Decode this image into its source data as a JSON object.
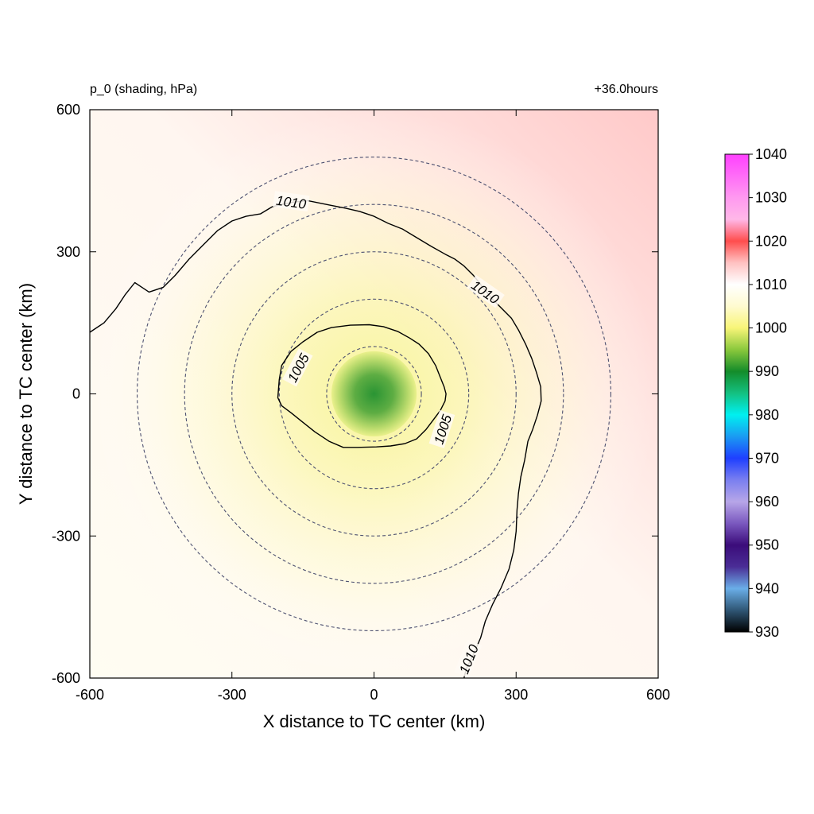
{
  "chart_data": {
    "type": "heatmap",
    "variable_label": "p_0 (shading, hPa)",
    "time_label": "+36.0hours",
    "xlabel": "X distance to TC center (km)",
    "ylabel": "Y distance to TC center (km)",
    "xlim": [
      -600,
      600
    ],
    "ylim": [
      -600,
      600
    ],
    "x_ticks": [
      -600,
      -300,
      0,
      300,
      600
    ],
    "y_ticks": [
      -600,
      -300,
      0,
      300,
      600
    ],
    "range_rings_km": [
      100,
      200,
      300,
      400,
      500
    ],
    "field": {
      "center": [
        0,
        0
      ],
      "center_value": 987,
      "background_gradient": {
        "southwest": 1008,
        "northeast": 1018
      }
    },
    "contours": [
      {
        "level": 1005,
        "labels": [
          {
            "text": "1005",
            "x": -160,
            "y": 55
          },
          {
            "text": "1005",
            "x": 145,
            "y": -75
          }
        ],
        "points": [
          [
            -195,
            60
          ],
          [
            -175,
            90
          ],
          [
            -150,
            110
          ],
          [
            -120,
            130
          ],
          [
            -90,
            140
          ],
          [
            -50,
            145
          ],
          [
            -10,
            146
          ],
          [
            20,
            142
          ],
          [
            50,
            132
          ],
          [
            75,
            118
          ],
          [
            95,
            105
          ],
          [
            115,
            85
          ],
          [
            130,
            60
          ],
          [
            140,
            35
          ],
          [
            148,
            15
          ],
          [
            152,
            0
          ],
          [
            150,
            -15
          ],
          [
            140,
            -35
          ],
          [
            125,
            -55
          ],
          [
            110,
            -75
          ],
          [
            90,
            -95
          ],
          [
            65,
            -105
          ],
          [
            35,
            -110
          ],
          [
            5,
            -112
          ],
          [
            -35,
            -113
          ],
          [
            -65,
            -113
          ],
          [
            -95,
            -100
          ],
          [
            -125,
            -80
          ],
          [
            -150,
            -60
          ],
          [
            -175,
            -40
          ],
          [
            -195,
            -25
          ],
          [
            -203,
            -8
          ],
          [
            -200,
            30
          ],
          [
            -195,
            60
          ]
        ]
      },
      {
        "level": 1010,
        "labels": [
          {
            "text": "1010",
            "x": -175,
            "y": 405
          },
          {
            "text": "1010",
            "x": 235,
            "y": 215
          },
          {
            "text": "1010",
            "x": 200,
            "y": -560
          }
        ],
        "points": [
          [
            -600,
            130
          ],
          [
            -570,
            150
          ],
          [
            -545,
            180
          ],
          [
            -525,
            210
          ],
          [
            -505,
            235
          ],
          [
            -490,
            225
          ],
          [
            -475,
            215
          ],
          [
            -445,
            225
          ],
          [
            -420,
            250
          ],
          [
            -390,
            285
          ],
          [
            -360,
            315
          ],
          [
            -330,
            345
          ],
          [
            -300,
            365
          ],
          [
            -270,
            375
          ],
          [
            -240,
            380
          ],
          [
            -215,
            395
          ],
          [
            -195,
            400
          ],
          [
            -170,
            405
          ],
          [
            -140,
            408
          ],
          [
            -115,
            403
          ],
          [
            -90,
            398
          ],
          [
            -60,
            392
          ],
          [
            -30,
            385
          ],
          [
            0,
            375
          ],
          [
            30,
            360
          ],
          [
            60,
            348
          ],
          [
            90,
            330
          ],
          [
            120,
            312
          ],
          [
            150,
            295
          ],
          [
            170,
            285
          ],
          [
            190,
            270
          ],
          [
            210,
            250
          ],
          [
            230,
            225
          ],
          [
            250,
            200
          ],
          [
            270,
            180
          ],
          [
            290,
            160
          ],
          [
            305,
            135
          ],
          [
            320,
            105
          ],
          [
            333,
            75
          ],
          [
            343,
            45
          ],
          [
            352,
            15
          ],
          [
            353,
            -15
          ],
          [
            345,
            -45
          ],
          [
            335,
            -75
          ],
          [
            325,
            -100
          ],
          [
            318,
            -140
          ],
          [
            310,
            -175
          ],
          [
            305,
            -210
          ],
          [
            302,
            -245
          ],
          [
            300,
            -290
          ],
          [
            295,
            -330
          ],
          [
            285,
            -370
          ],
          [
            268,
            -410
          ],
          [
            250,
            -445
          ],
          [
            235,
            -480
          ],
          [
            225,
            -515
          ],
          [
            210,
            -550
          ],
          [
            195,
            -580
          ],
          [
            190,
            -600
          ]
        ]
      }
    ],
    "colorbar": {
      "ticks": [
        1040,
        1030,
        1020,
        1010,
        1000,
        990,
        980,
        970,
        960,
        950,
        940,
        930
      ],
      "stops": [
        {
          "value": 930,
          "color": "#000000"
        },
        {
          "value": 935,
          "color": "#2f5675"
        },
        {
          "value": 940,
          "color": "#6aaee8"
        },
        {
          "value": 945,
          "color": "#4a2d96"
        },
        {
          "value": 950,
          "color": "#3b0c7a"
        },
        {
          "value": 955,
          "color": "#7a58bf"
        },
        {
          "value": 960,
          "color": "#b7a6e8"
        },
        {
          "value": 965,
          "color": "#7a7ff0"
        },
        {
          "value": 970,
          "color": "#1f3fff"
        },
        {
          "value": 975,
          "color": "#1a9bf2"
        },
        {
          "value": 980,
          "color": "#00f0f0"
        },
        {
          "value": 985,
          "color": "#14c080"
        },
        {
          "value": 990,
          "color": "#148c2a"
        },
        {
          "value": 995,
          "color": "#8bc83c"
        },
        {
          "value": 1000,
          "color": "#f8f578"
        },
        {
          "value": 1005,
          "color": "#fffbd0"
        },
        {
          "value": 1010,
          "color": "#ffffff"
        },
        {
          "value": 1015,
          "color": "#ffc2c2"
        },
        {
          "value": 1020,
          "color": "#ff4d4d"
        },
        {
          "value": 1025,
          "color": "#ffb8e8"
        },
        {
          "value": 1030,
          "color": "#ff99f0"
        },
        {
          "value": 1040,
          "color": "#ff40ff"
        }
      ]
    }
  }
}
